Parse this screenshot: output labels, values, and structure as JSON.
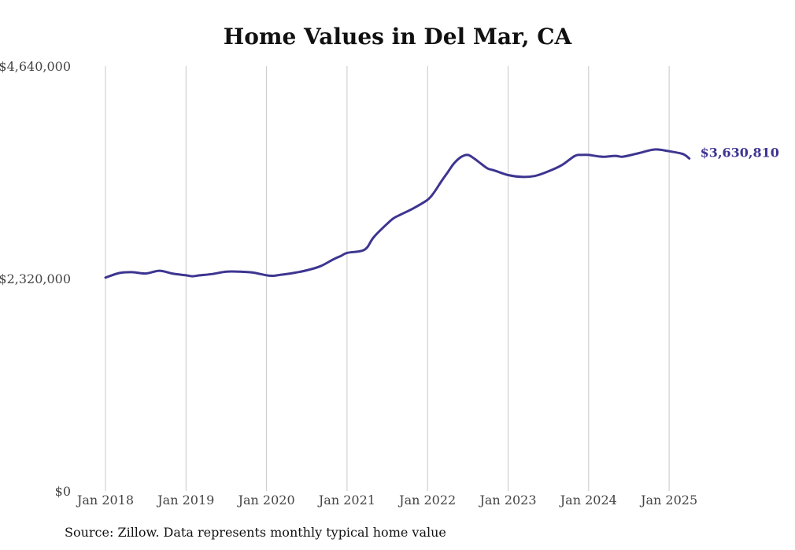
{
  "chart_data": {
    "type": "line",
    "title": "Home Values in Del Mar, CA",
    "source": "Source: Zillow. Data represents monthly typical home value",
    "ylim": [
      0,
      4640000
    ],
    "y_ticks": [
      "$0",
      "$2,320,000",
      "$4,640,000"
    ],
    "y_tick_values": [
      0,
      2320000,
      4640000
    ],
    "x_ticks": [
      "Jan 2018",
      "Jan 2019",
      "Jan 2020",
      "Jan 2021",
      "Jan 2022",
      "Jan 2023",
      "Jan 2024",
      "Jan 2025"
    ],
    "x_tick_values": [
      2018,
      2019,
      2020,
      2021,
      2022,
      2023,
      2024,
      2025
    ],
    "grid": "vertical",
    "line_color": "#3d3590",
    "end_label": "$3,630,810",
    "series": [
      {
        "x": [
          2018.0,
          2018.17,
          2018.33,
          2018.5,
          2018.67,
          2018.83,
          2019.0,
          2019.08,
          2019.17,
          2019.33,
          2019.5,
          2019.67,
          2019.83,
          2020.0,
          2020.08,
          2020.17,
          2020.33,
          2020.5,
          2020.67,
          2020.83,
          2020.92,
          2021.0,
          2021.17,
          2021.25,
          2021.33,
          2021.5,
          2021.58,
          2021.67,
          2021.83,
          2022.0,
          2022.08,
          2022.17,
          2022.25,
          2022.33,
          2022.42,
          2022.5,
          2022.58,
          2022.67,
          2022.75,
          2022.83,
          2023.0,
          2023.17,
          2023.33,
          2023.5,
          2023.67,
          2023.83,
          2023.92,
          2024.0,
          2024.17,
          2024.33,
          2024.42,
          2024.58,
          2024.67,
          2024.83,
          2025.0,
          2025.17,
          2025.25
        ],
        "values": [
          2330000,
          2380000,
          2390000,
          2375000,
          2405000,
          2375000,
          2355000,
          2345000,
          2355000,
          2370000,
          2395000,
          2395000,
          2385000,
          2355000,
          2350000,
          2360000,
          2380000,
          2410000,
          2455000,
          2530000,
          2565000,
          2600000,
          2620000,
          2660000,
          2770000,
          2920000,
          2980000,
          3020000,
          3090000,
          3180000,
          3260000,
          3380000,
          3480000,
          3580000,
          3650000,
          3670000,
          3630000,
          3570000,
          3520000,
          3500000,
          3450000,
          3430000,
          3440000,
          3490000,
          3560000,
          3660000,
          3670000,
          3670000,
          3650000,
          3660000,
          3650000,
          3680000,
          3700000,
          3730000,
          3710000,
          3680000,
          3630810
        ]
      }
    ]
  }
}
